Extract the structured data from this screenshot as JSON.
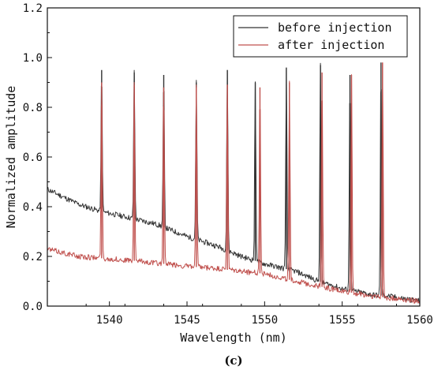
{
  "chart_data": {
    "type": "line",
    "panel_label": "(c)",
    "xlabel": "Wavelength (nm)",
    "ylabel": "Normalized amplitude",
    "xlim": [
      1536,
      1560
    ],
    "ylim": [
      0,
      1.2
    ],
    "xticks": [
      1540,
      1545,
      1550,
      1555,
      1560
    ],
    "yticks": [
      0.0,
      0.2,
      0.4,
      0.6,
      0.8,
      1.0,
      1.2
    ],
    "ytick_labels": [
      "0.0",
      "0.2",
      "0.4",
      "0.6",
      "0.8",
      "1.0",
      "1.2"
    ],
    "legend_position": "top-right",
    "grid": false,
    "series": [
      {
        "name": "before injection",
        "color": "#333333",
        "baseline": [
          [
            1536,
            0.47
          ],
          [
            1538,
            0.41
          ],
          [
            1539.5,
            0.38
          ],
          [
            1541,
            0.36
          ],
          [
            1543,
            0.33
          ],
          [
            1545,
            0.28
          ],
          [
            1547,
            0.24
          ],
          [
            1548.5,
            0.2
          ],
          [
            1550,
            0.17
          ],
          [
            1552,
            0.14
          ],
          [
            1553.5,
            0.1
          ],
          [
            1555,
            0.07
          ],
          [
            1557,
            0.045
          ],
          [
            1558,
            0.04
          ],
          [
            1560,
            0.02
          ]
        ],
        "peaks": [
          [
            1539.5,
            0.95
          ],
          [
            1541.6,
            0.94
          ],
          [
            1543.5,
            0.93
          ],
          [
            1545.6,
            0.9
          ],
          [
            1547.6,
            0.95
          ],
          [
            1549.4,
            0.9
          ],
          [
            1551.4,
            0.96
          ],
          [
            1553.6,
            0.97
          ],
          [
            1555.5,
            0.93
          ],
          [
            1557.5,
            0.98
          ]
        ]
      },
      {
        "name": "after injection",
        "color": "#c0504d",
        "baseline": [
          [
            1536,
            0.23
          ],
          [
            1538,
            0.2
          ],
          [
            1540,
            0.19
          ],
          [
            1542,
            0.18
          ],
          [
            1545,
            0.16
          ],
          [
            1547,
            0.15
          ],
          [
            1550,
            0.13
          ],
          [
            1552,
            0.1
          ],
          [
            1553.5,
            0.08
          ],
          [
            1555,
            0.06
          ],
          [
            1557,
            0.04
          ],
          [
            1560,
            0.02
          ]
        ],
        "peaks": [
          [
            1539.5,
            0.9
          ],
          [
            1541.6,
            0.89
          ],
          [
            1543.5,
            0.88
          ],
          [
            1545.6,
            0.88
          ],
          [
            1547.6,
            0.89
          ],
          [
            1549.7,
            0.88
          ],
          [
            1551.6,
            0.9
          ],
          [
            1553.7,
            0.94
          ],
          [
            1555.6,
            0.93
          ],
          [
            1557.6,
            0.98
          ]
        ]
      }
    ]
  }
}
